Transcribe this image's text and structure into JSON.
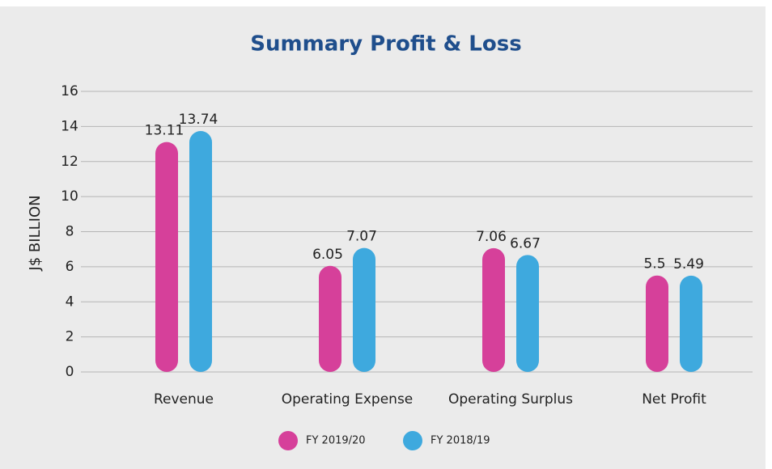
{
  "chart_data": {
    "type": "bar",
    "title": "Summary Profit & Loss",
    "y_label": "J$ BILLION",
    "categories": [
      "Revenue",
      "Operating Expense",
      "Operating Surplus",
      "Net Profit"
    ],
    "series": [
      {
        "name": "FY 2019/20",
        "color": "#d6409a",
        "values": [
          13.11,
          6.05,
          7.06,
          5.5
        ]
      },
      {
        "name": "FY 2018/19",
        "color": "#3ea9de",
        "values": [
          13.74,
          7.07,
          6.67,
          5.49
        ]
      }
    ],
    "ylim": [
      0,
      16
    ],
    "yticks": [
      0,
      2,
      4,
      6,
      8,
      10,
      12,
      14,
      16
    ],
    "grid": true,
    "legend": "bottom"
  }
}
